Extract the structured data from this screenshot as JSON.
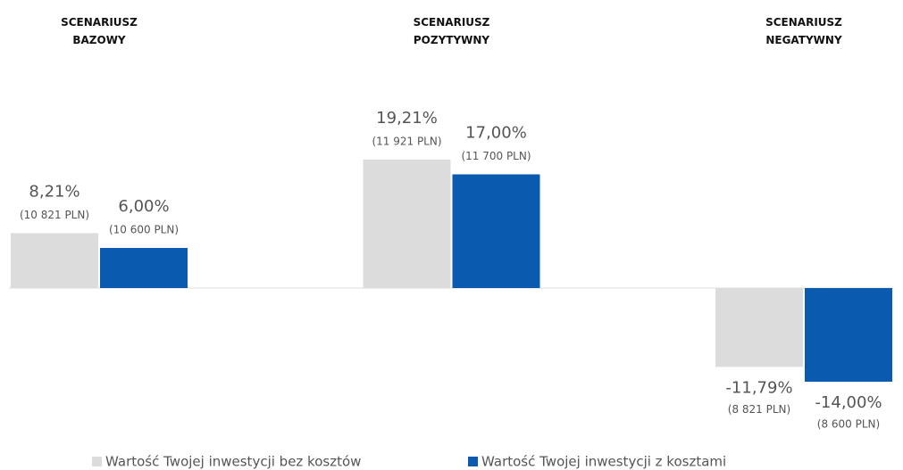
{
  "chart_data": {
    "type": "bar",
    "categories": [
      "SCENARIUSZ\nBAZOWY",
      "SCENARIUSZ\nPOZYTYWNY",
      "SCENARIUSZ\nNEGATYWNY"
    ],
    "series": [
      {
        "name": "Wartość Twojej inwestycji bez kosztów",
        "color": "#dcdcdc",
        "values": [
          8.21,
          19.21,
          -11.79
        ],
        "value_labels": [
          "8,21%",
          "19,21%",
          "-11,79%"
        ],
        "amount_labels": [
          "(10 821 PLN)",
          "(11 921 PLN)",
          "(8 821 PLN)"
        ]
      },
      {
        "name": "Wartość Twojej inwestycji z kosztami",
        "color": "#0a5bb0",
        "values": [
          6.0,
          17.0,
          -14.0
        ],
        "value_labels": [
          "6,00%",
          "17,00%",
          "-14,00%"
        ],
        "amount_labels": [
          "(10 600 PLN)",
          "(11 700 PLN)",
          "(8 600 PLN)"
        ]
      }
    ],
    "ylim": [
      -20,
      25
    ],
    "legend": "bottom"
  }
}
